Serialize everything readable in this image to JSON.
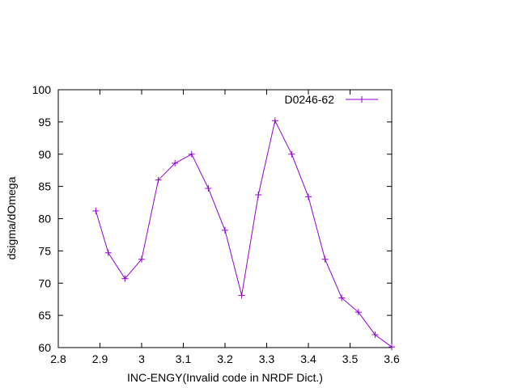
{
  "chart_data": {
    "type": "line",
    "title": "",
    "xlabel": "INC-ENGY(Invalid code in NRDF Dict.)",
    "ylabel": "dsigma/dOmega",
    "xlim": [
      2.8,
      3.6
    ],
    "ylim": [
      60,
      100
    ],
    "xticks": [
      "2.8",
      "2.9",
      "3",
      "3.1",
      "3.2",
      "3.3",
      "3.4",
      "3.5",
      "3.6"
    ],
    "yticks": [
      "60",
      "65",
      "70",
      "75",
      "80",
      "85",
      "90",
      "95",
      "100"
    ],
    "grid": false,
    "legend": "top-right",
    "series": [
      {
        "name": "D0246-62",
        "color": "#9400d3",
        "marker": "plus",
        "x": [
          2.89,
          2.92,
          2.96,
          3.0,
          3.04,
          3.08,
          3.12,
          3.16,
          3.2,
          3.24,
          3.28,
          3.32,
          3.36,
          3.4,
          3.44,
          3.48,
          3.52,
          3.56,
          3.6
        ],
        "y": [
          81.2,
          74.7,
          70.7,
          73.7,
          86.0,
          88.6,
          90.0,
          84.7,
          78.2,
          68.1,
          83.7,
          95.2,
          90.0,
          83.4,
          73.7,
          67.7,
          65.5,
          62.0,
          60.1
        ]
      }
    ]
  }
}
